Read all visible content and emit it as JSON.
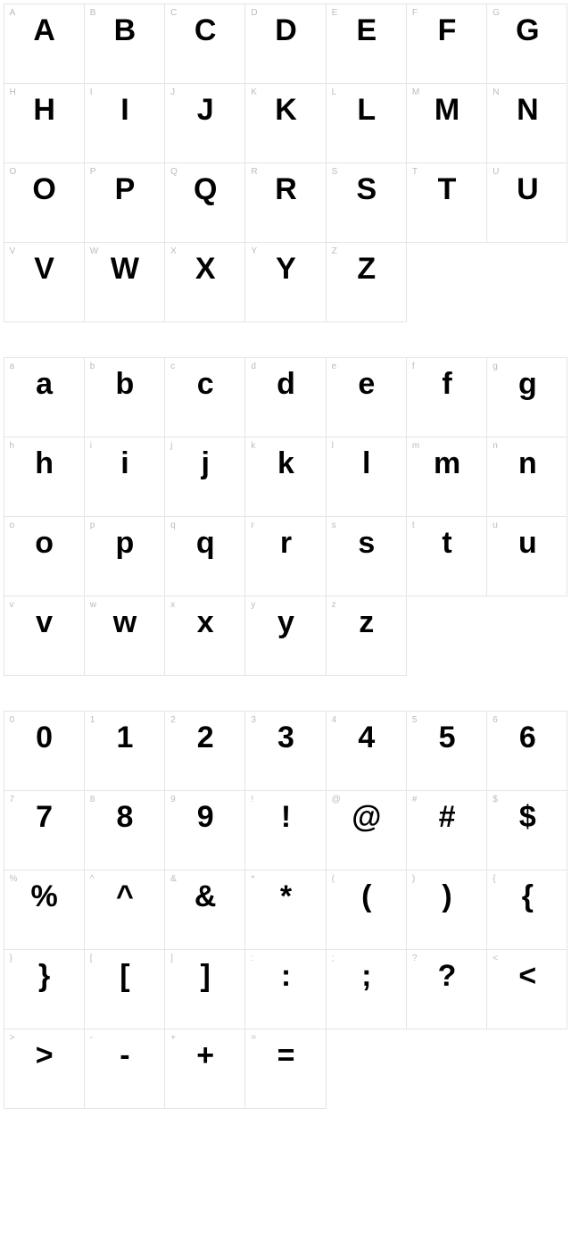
{
  "charmap": {
    "cell_border_color": "#e5e5e5",
    "label_color": "#bbbbbb",
    "glyph_color": "#000000",
    "background_color": "#ffffff",
    "columns": 7,
    "label_fontsize": 10,
    "glyph_fontsize": 34,
    "glyph_fontweight": 900,
    "sections": [
      {
        "name": "uppercase",
        "cells": [
          {
            "label": "A",
            "glyph": "A"
          },
          {
            "label": "B",
            "glyph": "B"
          },
          {
            "label": "C",
            "glyph": "C"
          },
          {
            "label": "D",
            "glyph": "D"
          },
          {
            "label": "E",
            "glyph": "E"
          },
          {
            "label": "F",
            "glyph": "F"
          },
          {
            "label": "G",
            "glyph": "G"
          },
          {
            "label": "H",
            "glyph": "H"
          },
          {
            "label": "I",
            "glyph": "I"
          },
          {
            "label": "J",
            "glyph": "J"
          },
          {
            "label": "K",
            "glyph": "K"
          },
          {
            "label": "L",
            "glyph": "L"
          },
          {
            "label": "M",
            "glyph": "M"
          },
          {
            "label": "N",
            "glyph": "N"
          },
          {
            "label": "O",
            "glyph": "O"
          },
          {
            "label": "P",
            "glyph": "P"
          },
          {
            "label": "Q",
            "glyph": "Q"
          },
          {
            "label": "R",
            "glyph": "R"
          },
          {
            "label": "S",
            "glyph": "S"
          },
          {
            "label": "T",
            "glyph": "T"
          },
          {
            "label": "U",
            "glyph": "U"
          },
          {
            "label": "V",
            "glyph": "V"
          },
          {
            "label": "W",
            "glyph": "W"
          },
          {
            "label": "X",
            "glyph": "X"
          },
          {
            "label": "Y",
            "glyph": "Y"
          },
          {
            "label": "Z",
            "glyph": "Z"
          }
        ]
      },
      {
        "name": "lowercase",
        "cells": [
          {
            "label": "a",
            "glyph": "a"
          },
          {
            "label": "b",
            "glyph": "b"
          },
          {
            "label": "c",
            "glyph": "c"
          },
          {
            "label": "d",
            "glyph": "d"
          },
          {
            "label": "e",
            "glyph": "e"
          },
          {
            "label": "f",
            "glyph": "f"
          },
          {
            "label": "g",
            "glyph": "g"
          },
          {
            "label": "h",
            "glyph": "h"
          },
          {
            "label": "i",
            "glyph": "i"
          },
          {
            "label": "j",
            "glyph": "j"
          },
          {
            "label": "k",
            "glyph": "k"
          },
          {
            "label": "l",
            "glyph": "l"
          },
          {
            "label": "m",
            "glyph": "m"
          },
          {
            "label": "n",
            "glyph": "n"
          },
          {
            "label": "o",
            "glyph": "o"
          },
          {
            "label": "p",
            "glyph": "p"
          },
          {
            "label": "q",
            "glyph": "q"
          },
          {
            "label": "r",
            "glyph": "r"
          },
          {
            "label": "s",
            "glyph": "s"
          },
          {
            "label": "t",
            "glyph": "t"
          },
          {
            "label": "u",
            "glyph": "u"
          },
          {
            "label": "v",
            "glyph": "v"
          },
          {
            "label": "w",
            "glyph": "w"
          },
          {
            "label": "x",
            "glyph": "x"
          },
          {
            "label": "y",
            "glyph": "y"
          },
          {
            "label": "z",
            "glyph": "z"
          }
        ]
      },
      {
        "name": "numbers-symbols",
        "cells": [
          {
            "label": "0",
            "glyph": "0"
          },
          {
            "label": "1",
            "glyph": "1"
          },
          {
            "label": "2",
            "glyph": "2"
          },
          {
            "label": "3",
            "glyph": "3"
          },
          {
            "label": "4",
            "glyph": "4"
          },
          {
            "label": "5",
            "glyph": "5"
          },
          {
            "label": "6",
            "glyph": "6"
          },
          {
            "label": "7",
            "glyph": "7"
          },
          {
            "label": "8",
            "glyph": "8"
          },
          {
            "label": "9",
            "glyph": "9"
          },
          {
            "label": "!",
            "glyph": "!"
          },
          {
            "label": "@",
            "glyph": "@"
          },
          {
            "label": "#",
            "glyph": "#"
          },
          {
            "label": "$",
            "glyph": "$"
          },
          {
            "label": "%",
            "glyph": "%"
          },
          {
            "label": "^",
            "glyph": "^"
          },
          {
            "label": "&",
            "glyph": "&"
          },
          {
            "label": "*",
            "glyph": "*"
          },
          {
            "label": "(",
            "glyph": "("
          },
          {
            "label": ")",
            "glyph": ")"
          },
          {
            "label": "{",
            "glyph": "{"
          },
          {
            "label": "}",
            "glyph": "}"
          },
          {
            "label": "[",
            "glyph": "["
          },
          {
            "label": "]",
            "glyph": "]"
          },
          {
            "label": ":",
            "glyph": ":"
          },
          {
            "label": ";",
            "glyph": ";"
          },
          {
            "label": "?",
            "glyph": "?"
          },
          {
            "label": "<",
            "glyph": "<"
          },
          {
            "label": ">",
            "glyph": ">"
          },
          {
            "label": "-",
            "glyph": "-"
          },
          {
            "label": "+",
            "glyph": "+"
          },
          {
            "label": "=",
            "glyph": "="
          }
        ]
      }
    ]
  }
}
